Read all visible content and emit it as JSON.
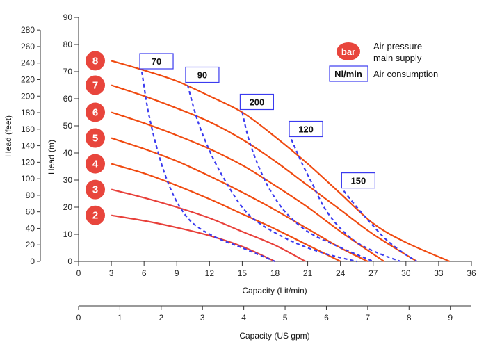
{
  "chart_data": {
    "type": "line",
    "xlabel": "Capacity (Lit/min)",
    "xlabel2": "Capacity (US gpm)",
    "ylabel": "Head (m)",
    "ylabel2": "Head (feet)",
    "xlim": [
      0,
      36
    ],
    "ylim": [
      0,
      90
    ],
    "x_ticks": [
      "0",
      "3",
      "6",
      "9",
      "12",
      "15",
      "18",
      "21",
      "24",
      "27",
      "30",
      "33",
      "36"
    ],
    "y_ticks": [
      "0",
      "10",
      "20",
      "30",
      "40",
      "50",
      "60",
      "70",
      "80",
      "90"
    ],
    "x2_ticks": [
      "0",
      "1",
      "2",
      "3",
      "4",
      "5",
      "6",
      "7",
      "8",
      "9"
    ],
    "y2_ticks": [
      "0",
      "20",
      "40",
      "60",
      "80",
      "100",
      "120",
      "140",
      "160",
      "180",
      "200",
      "220",
      "240",
      "260",
      "280"
    ],
    "legend": {
      "bar_symbol": "bar",
      "bar_text_line1": "Air pressure",
      "bar_text_line2": "main supply",
      "nl_symbol": "Nl/min",
      "nl_text": "Air consumption"
    },
    "pressure_series": [
      {
        "name": "8",
        "points": [
          [
            3,
            74
          ],
          [
            6,
            70.5
          ],
          [
            9,
            66.5
          ],
          [
            12,
            61
          ],
          [
            15,
            55
          ],
          [
            18,
            46
          ],
          [
            21,
            36
          ],
          [
            24,
            25
          ],
          [
            27,
            14
          ],
          [
            30,
            7
          ],
          [
            34,
            0
          ]
        ]
      },
      {
        "name": "7",
        "points": [
          [
            3,
            65
          ],
          [
            6,
            61
          ],
          [
            9,
            56.5
          ],
          [
            12,
            51.5
          ],
          [
            15,
            45
          ],
          [
            18,
            37
          ],
          [
            21,
            28
          ],
          [
            24,
            19
          ],
          [
            27,
            10
          ],
          [
            31,
            0
          ]
        ]
      },
      {
        "name": "6",
        "points": [
          [
            3,
            55
          ],
          [
            6,
            51
          ],
          [
            9,
            46.5
          ],
          [
            12,
            41.5
          ],
          [
            15,
            35.5
          ],
          [
            18,
            28
          ],
          [
            21,
            20
          ],
          [
            24,
            11
          ],
          [
            28,
            0
          ]
        ]
      },
      {
        "name": "5",
        "points": [
          [
            3,
            45.5
          ],
          [
            6,
            41.5
          ],
          [
            9,
            37
          ],
          [
            12,
            31.5
          ],
          [
            15,
            25.5
          ],
          [
            18,
            19
          ],
          [
            21,
            12
          ],
          [
            24,
            5
          ],
          [
            26.5,
            0
          ]
        ]
      },
      {
        "name": "4",
        "points": [
          [
            3,
            36
          ],
          [
            6,
            32.5
          ],
          [
            9,
            28
          ],
          [
            12,
            23
          ],
          [
            15,
            17.5
          ],
          [
            18,
            12
          ],
          [
            21,
            6
          ],
          [
            24,
            0
          ]
        ]
      },
      {
        "name": "3",
        "points": [
          [
            3,
            26.5
          ],
          [
            6,
            23.5
          ],
          [
            9,
            20
          ],
          [
            12,
            16
          ],
          [
            15,
            11
          ],
          [
            18,
            6
          ],
          [
            20.8,
            0
          ]
        ]
      },
      {
        "name": "2",
        "points": [
          [
            3,
            17
          ],
          [
            6,
            15
          ],
          [
            9,
            12.5
          ],
          [
            12,
            9.5
          ],
          [
            15,
            5.5
          ],
          [
            18,
            0
          ]
        ]
      }
    ],
    "consumption_series": [
      {
        "name": "70",
        "points": [
          [
            5.8,
            70
          ],
          [
            6.4,
            55
          ],
          [
            7.3,
            40
          ],
          [
            8.3,
            28
          ],
          [
            9.3,
            20
          ],
          [
            10.5,
            14
          ],
          [
            12.5,
            9
          ],
          [
            15,
            5
          ],
          [
            18,
            0
          ]
        ]
      },
      {
        "name": "90",
        "points": [
          [
            10,
            65
          ],
          [
            10.9,
            52
          ],
          [
            12.1,
            40
          ],
          [
            13.4,
            30
          ],
          [
            15,
            20
          ],
          [
            16.6,
            14
          ],
          [
            19.5,
            7.5
          ],
          [
            22.5,
            3
          ],
          [
            25.5,
            0
          ]
        ]
      },
      {
        "name": "200",
        "points": [
          [
            15,
            55
          ],
          [
            15.6,
            45
          ],
          [
            16.5,
            35
          ],
          [
            17.6,
            26
          ],
          [
            19,
            18
          ],
          [
            21,
            11
          ],
          [
            23.5,
            6
          ],
          [
            27,
            0
          ]
        ]
      },
      {
        "name": "120",
        "points": [
          [
            19.5,
            45
          ],
          [
            20.5,
            36
          ],
          [
            21.5,
            28
          ],
          [
            22.5,
            20
          ],
          [
            23.8,
            13
          ],
          [
            25.5,
            7
          ],
          [
            27.5,
            3
          ],
          [
            29.5,
            0
          ]
        ]
      },
      {
        "name": "150",
        "points": [
          [
            24.3,
            26
          ],
          [
            25.5,
            20
          ],
          [
            26.8,
            14
          ],
          [
            28.2,
            8
          ],
          [
            29.8,
            3
          ],
          [
            31,
            0
          ]
        ]
      }
    ],
    "colors": {
      "pressure_high": "#f04a10",
      "pressure_low": "#e8403a",
      "consumption": "#3b3bef",
      "bubble": "#e8453c",
      "axis": "#333333"
    }
  }
}
